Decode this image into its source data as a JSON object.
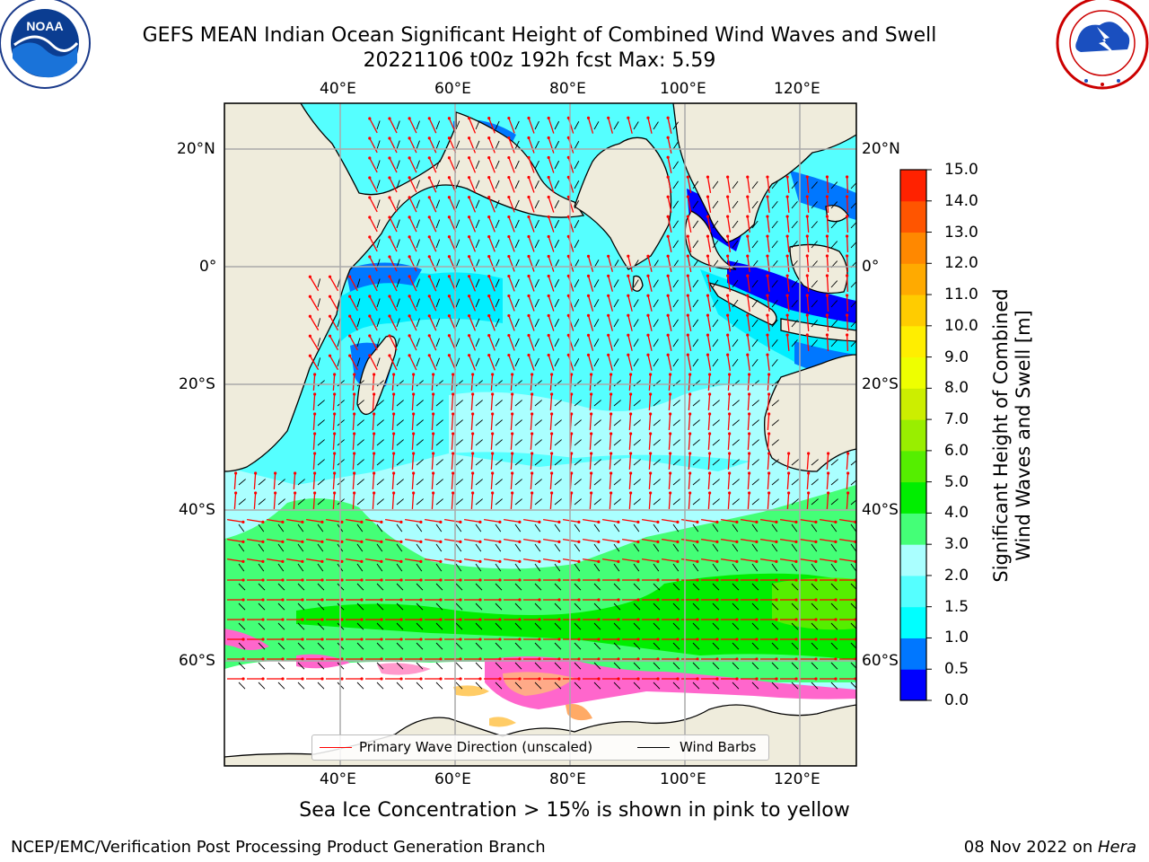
{
  "header": {
    "title_line1": "GEFS MEAN Indian Ocean Significant Height of Combined Wind Waves and Swell",
    "title_line2": "20221106 t00z 192h fcst   Max: 5.59",
    "noaa_logo_text": "NOAA",
    "noaa_ring_text": "NATIONAL OCEANIC AND ATMOSPHERIC ADMINISTRATION · U.S. DEPARTMENT OF COMMERCE",
    "nws_ring_text": "NATIONAL WEATHER SERVICE"
  },
  "map": {
    "lon_labels": [
      "40°E",
      "60°E",
      "80°E",
      "100°E",
      "120°E"
    ],
    "lat_labels": [
      "20°N",
      "0°",
      "20°S",
      "40°S",
      "60°S"
    ],
    "legend": {
      "wave_label": "Primary Wave Direction (unscaled)",
      "wind_label": "Wind Barbs",
      "wave_color": "#ff0000",
      "wind_color": "#000000"
    },
    "colors": {
      "land": "#efecdc",
      "ocean_low": "#00eeff",
      "ocean_mid": "#aaffff",
      "sea_ice": "#ff66cc"
    }
  },
  "colorbar": {
    "label_line1": "Significant Height of Combined",
    "label_line2": "Wind Waves and Swell [m]",
    "ticks": [
      "15.0",
      "14.0",
      "13.0",
      "12.0",
      "11.0",
      "10.0",
      "9.0",
      "8.0",
      "7.0",
      "6.0",
      "5.0",
      "4.0",
      "3.0",
      "2.0",
      "1.5",
      "1.0",
      "0.5",
      "0.0"
    ],
    "colors": [
      "#0000ff",
      "#0077ff",
      "#00ffff",
      "#55ffff",
      "#aaffff",
      "#44ff77",
      "#00ee00",
      "#55ee00",
      "#99ee00",
      "#ccee00",
      "#eeff00",
      "#ffee00",
      "#ffcc00",
      "#ffaa00",
      "#ff8800",
      "#ff5500",
      "#ff2200"
    ]
  },
  "footer": {
    "sea_ice_note": "Sea Ice Concentration > 15% is shown in pink to yellow",
    "left": "NCEP/EMC/Verification Post Processing Product Generation Branch",
    "date": "08 Nov 2022 on ",
    "host": "Hera"
  }
}
